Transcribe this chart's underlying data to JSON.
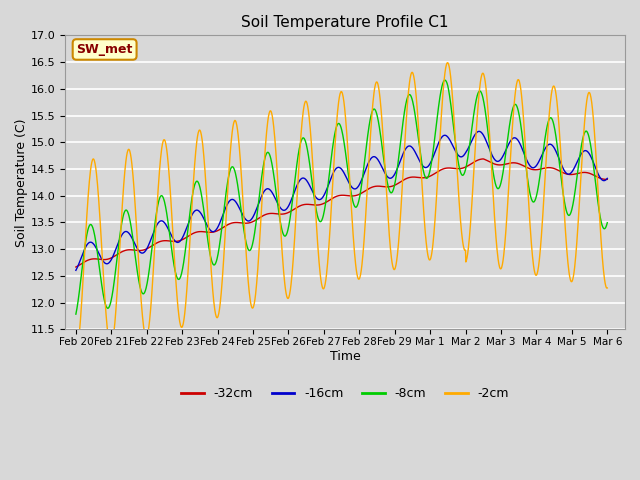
{
  "title": "Soil Temperature Profile C1",
  "xlabel": "Time",
  "ylabel": "Soil Temperature (C)",
  "ylim": [
    11.5,
    17.0
  ],
  "yticks": [
    11.5,
    12.0,
    12.5,
    13.0,
    13.5,
    14.0,
    14.5,
    15.0,
    15.5,
    16.0,
    16.5,
    17.0
  ],
  "bg_color": "#d8d8d8",
  "plot_bg_color": "#d8d8d8",
  "grid_color": "#ffffff",
  "line_colors": {
    "-32cm": "#cc0000",
    "-16cm": "#0000cc",
    "-8cm": "#00cc00",
    "-2cm": "#ffaa00"
  },
  "annotation_label": "SW_met",
  "annotation_color": "#880000",
  "annotation_bg": "#ffffcc",
  "annotation_edge": "#cc8800",
  "dates_label": [
    "Feb 20",
    "Feb 21",
    "Feb 22",
    "Feb 23",
    "Feb 24",
    "Feb 25",
    "Feb 26",
    "Feb 27",
    "Feb 28",
    "Feb 29",
    "Mar 1",
    "Mar 2",
    "Mar 3",
    "Mar 4",
    "Mar 5",
    "Mar 6"
  ],
  "n_points": 1500
}
